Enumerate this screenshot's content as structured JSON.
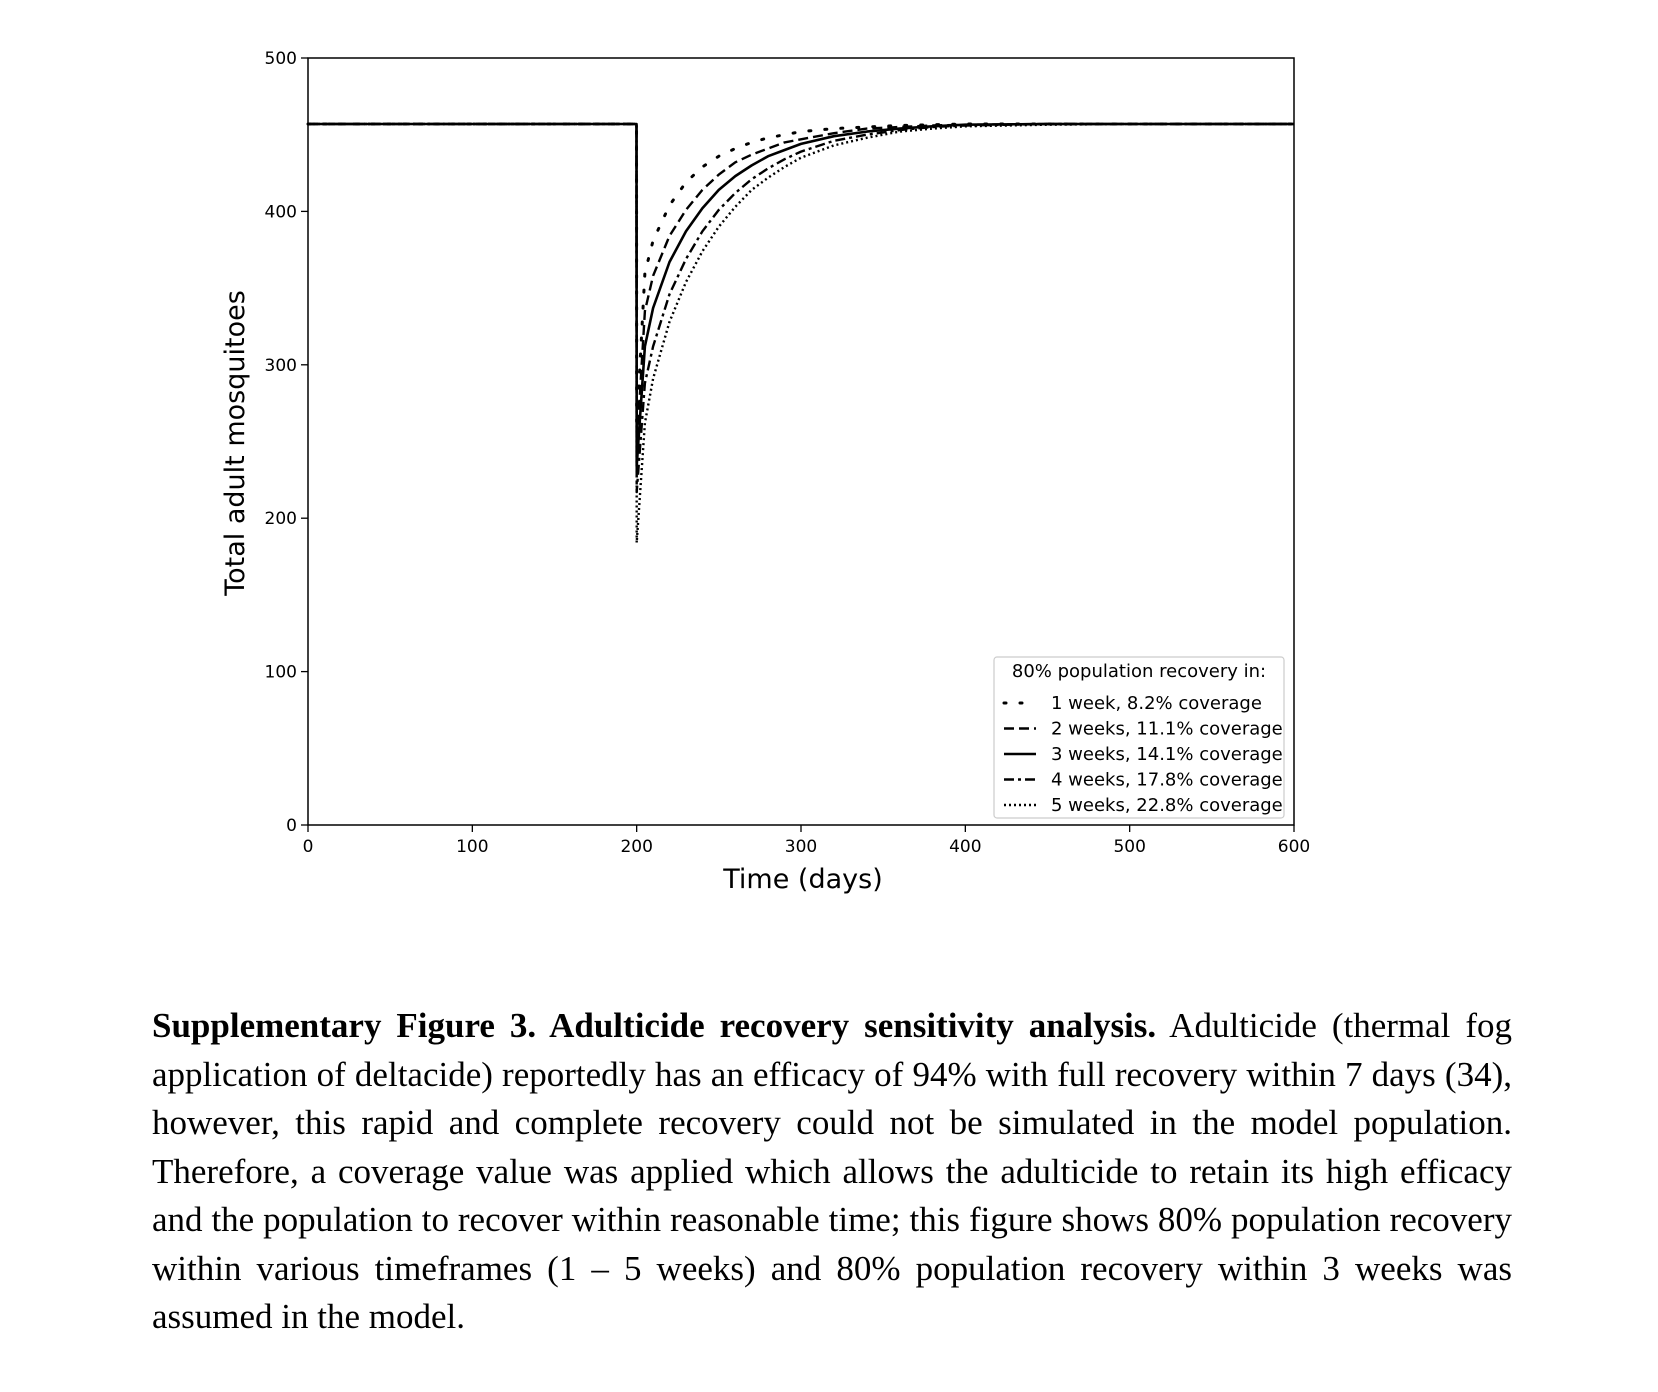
{
  "chart_data": {
    "type": "line",
    "xlabel": "Time (days)",
    "ylabel": "Total adult mosquitoes",
    "xlim": [
      0,
      600
    ],
    "ylim": [
      0,
      500
    ],
    "xticks": [
      0,
      100,
      200,
      300,
      400,
      500,
      600
    ],
    "yticks": [
      0,
      100,
      200,
      300,
      400,
      500
    ],
    "grid": false,
    "legend_position": "lower-right",
    "legend_title": "80% population recovery in:",
    "baseline": 457,
    "intervention_day": 200,
    "series": [
      {
        "name": "1 week, 8.2% coverage",
        "style": "sparse-dotted",
        "x": [
          0,
          199.9,
          200,
          205,
          210,
          220,
          230,
          240,
          250,
          260,
          270,
          280,
          290,
          300,
          320,
          340,
          360,
          380,
          400,
          450,
          500,
          550,
          600
        ],
        "y": [
          457,
          457,
          259,
          360,
          381,
          404,
          419,
          429,
          436,
          441,
          445,
          448,
          450,
          452,
          454,
          455,
          456,
          456.5,
          457,
          457,
          457,
          457,
          457
        ]
      },
      {
        "name": "2 weeks, 11.1% coverage",
        "style": "dashed",
        "x": [
          0,
          199.9,
          200,
          205,
          210,
          220,
          230,
          240,
          250,
          260,
          270,
          280,
          290,
          300,
          320,
          340,
          360,
          380,
          400,
          450,
          500,
          550,
          600
        ],
        "y": [
          457,
          457,
          246,
          335,
          358,
          384,
          401,
          414,
          424,
          432,
          437,
          441,
          445,
          447,
          451,
          454,
          455,
          456,
          456.5,
          457,
          457,
          457,
          457
        ]
      },
      {
        "name": "3 weeks, 14.1% coverage",
        "style": "solid",
        "x": [
          0,
          199.9,
          200,
          205,
          210,
          220,
          230,
          240,
          250,
          260,
          270,
          280,
          290,
          300,
          320,
          340,
          360,
          380,
          400,
          450,
          500,
          550,
          600
        ],
        "y": [
          457,
          457,
          234,
          312,
          337,
          367,
          387,
          402,
          414,
          423,
          430,
          436,
          440,
          444,
          449,
          452,
          454,
          455.5,
          456.5,
          457,
          457,
          457,
          457
        ]
      },
      {
        "name": "4 weeks, 17.8% coverage",
        "style": "dash-dot",
        "x": [
          0,
          199.9,
          200,
          205,
          210,
          220,
          230,
          240,
          250,
          260,
          270,
          280,
          290,
          300,
          320,
          340,
          360,
          380,
          400,
          450,
          500,
          550,
          600
        ],
        "y": [
          457,
          457,
          217,
          288,
          312,
          346,
          369,
          387,
          401,
          412,
          421,
          428,
          434,
          439,
          446,
          450,
          453,
          455,
          456,
          457,
          457,
          457,
          457
        ]
      },
      {
        "name": "5 weeks, 22.8% coverage",
        "style": "dotted",
        "x": [
          0,
          199.9,
          200,
          205,
          210,
          220,
          230,
          240,
          250,
          260,
          270,
          280,
          290,
          300,
          320,
          340,
          360,
          380,
          400,
          450,
          500,
          550,
          600
        ],
        "y": [
          457,
          457,
          184,
          262,
          291,
          328,
          354,
          374,
          390,
          403,
          414,
          422,
          429,
          435,
          443,
          448,
          452,
          454,
          455.5,
          456.5,
          457,
          457,
          457
        ]
      }
    ]
  },
  "caption": {
    "bold": "Supplementary Figure 3. Adulticide recovery sensitivity analysis.",
    "text": " Adulticide (thermal fog application of deltacide) reportedly has an efficacy of 94% with full recovery within 7 days (34), however, this rapid and complete recovery could not be simulated in the model population. Therefore, a coverage value was applied which allows the adulticide to retain its high efficacy and the population to recover within reasonable time; this figure shows 80% population recovery within various timeframes (1 – 5 weeks) and 80% population recovery within 3 weeks was assumed in the model."
  }
}
